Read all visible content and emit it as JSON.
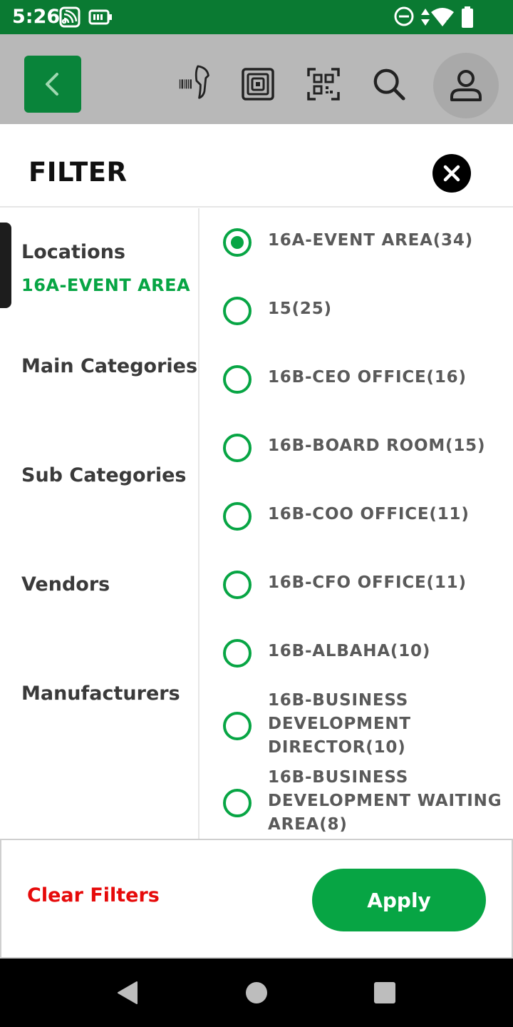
{
  "status_bar": {
    "time": "5:26",
    "icons": [
      "cast-icon",
      "battery-saver-icon",
      "do-not-disturb-icon",
      "data-arrows-icon",
      "wifi-icon",
      "battery-icon"
    ]
  },
  "toolbar": {
    "icons": [
      "back-icon",
      "barcode-scanner-icon",
      "rfid-icon",
      "qr-code-icon",
      "search-icon",
      "profile-icon"
    ]
  },
  "filter": {
    "title": "FILTER",
    "close_icon": "close-icon"
  },
  "categories": [
    {
      "label": "Locations",
      "selected_value": "16A-EVENT AREA",
      "active": true
    },
    {
      "label": "Main Categories"
    },
    {
      "label": "Sub Categories"
    },
    {
      "label": "Vendors"
    },
    {
      "label": "Manufacturers"
    }
  ],
  "options": [
    {
      "label": "16A-EVENT AREA(34)",
      "checked": true
    },
    {
      "label": "15(25)",
      "checked": false
    },
    {
      "label": "16B-CEO OFFICE(16)",
      "checked": false
    },
    {
      "label": "16B-BOARD ROOM(15)",
      "checked": false
    },
    {
      "label": "16B-COO OFFICE(11)",
      "checked": false
    },
    {
      "label": "16B-CFO OFFICE(11)",
      "checked": false
    },
    {
      "label": "16B-ALBAHA(10)",
      "checked": false
    },
    {
      "label": "16B-BUSINESS DEVELOPMENT DIRECTOR(10)",
      "checked": false
    },
    {
      "label": "16B-BUSINESS DEVELOPMENT WAITING AREA(8)",
      "checked": false
    }
  ],
  "actions": {
    "clear_label": "Clear Filters",
    "apply_label": "Apply"
  },
  "colors": {
    "status_bar": "#0a7a32",
    "accent_green": "#07a544",
    "clear_red": "#e60a0a",
    "toolbar_gray": "#b8b8b8"
  }
}
